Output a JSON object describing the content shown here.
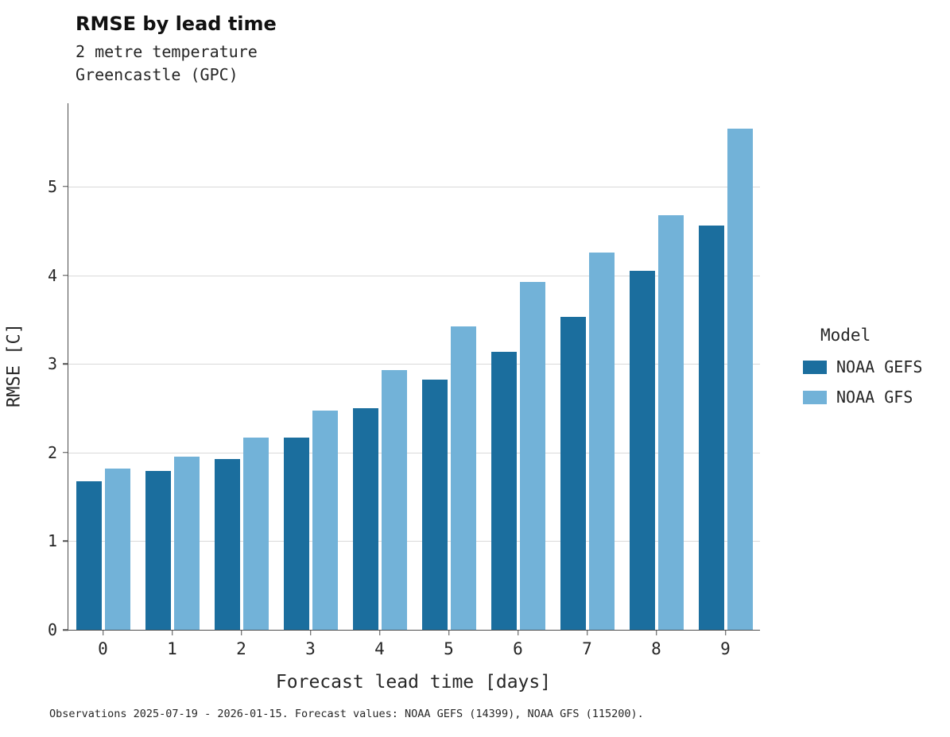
{
  "header": {
    "title": "RMSE by lead time",
    "subtitle1": "2 metre temperature",
    "subtitle2": "Greencastle (GPC)"
  },
  "caption": "Observations 2025-07-19 - 2026-01-15. Forecast values: NOAA GEFS (14399), NOAA GFS (115200).",
  "chart_data": {
    "type": "bar",
    "title": "RMSE by lead time",
    "subtitle": [
      "2 metre temperature",
      "Greencastle (GPC)"
    ],
    "xlabel": "Forecast lead time [days]",
    "ylabel": "RMSE [C]",
    "categories": [
      "0",
      "1",
      "2",
      "3",
      "4",
      "5",
      "6",
      "7",
      "8",
      "9"
    ],
    "series": [
      {
        "name": "NOAA GEFS",
        "color": "#1b6e9e",
        "values": [
          1.68,
          1.79,
          1.93,
          2.17,
          2.5,
          2.82,
          3.14,
          3.53,
          4.05,
          4.56
        ]
      },
      {
        "name": "NOAA GFS",
        "color": "#72b2d8",
        "values": [
          1.82,
          1.95,
          2.17,
          2.47,
          2.93,
          3.42,
          3.92,
          4.26,
          4.68,
          5.65
        ]
      }
    ],
    "ylim": [
      0,
      5.94
    ],
    "yticks": [
      0,
      1,
      2,
      3,
      4,
      5
    ],
    "grid": "horizontal",
    "legend_title": "Model",
    "legend_position": "right"
  },
  "colors": {
    "gefs": "#1b6e9e",
    "gfs": "#72b2d8",
    "gridline": "#d9d9d9",
    "axis": "#4d4d4d"
  }
}
